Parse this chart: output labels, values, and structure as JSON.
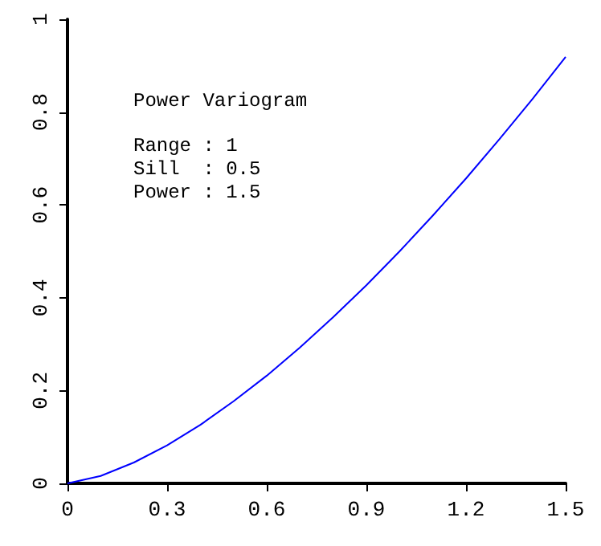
{
  "chart_data": {
    "type": "line",
    "title": "Power Variogram",
    "annotations": [
      "Range : 1",
      "Sill  : 0.5",
      "Power : 1.5"
    ],
    "x": [
      0,
      0.1,
      0.2,
      0.3,
      0.4,
      0.5,
      0.6,
      0.7,
      0.8,
      0.9,
      1.0,
      1.1,
      1.2,
      1.3,
      1.4,
      1.5
    ],
    "series": [
      {
        "color": "#0000ff",
        "values": [
          0,
          0.016,
          0.045,
          0.082,
          0.126,
          0.177,
          0.232,
          0.293,
          0.358,
          0.427,
          0.5,
          0.577,
          0.657,
          0.741,
          0.828,
          0.919
        ]
      }
    ],
    "xlim": [
      0,
      1.5
    ],
    "xticks": [
      0,
      0.3,
      0.6,
      0.9,
      1.2,
      1.5
    ],
    "ylim": [
      0,
      1
    ],
    "yticks": [
      0,
      0.2,
      0.4,
      0.6,
      0.8,
      1
    ],
    "grid": false,
    "marker": "none",
    "line_style": "solid"
  }
}
